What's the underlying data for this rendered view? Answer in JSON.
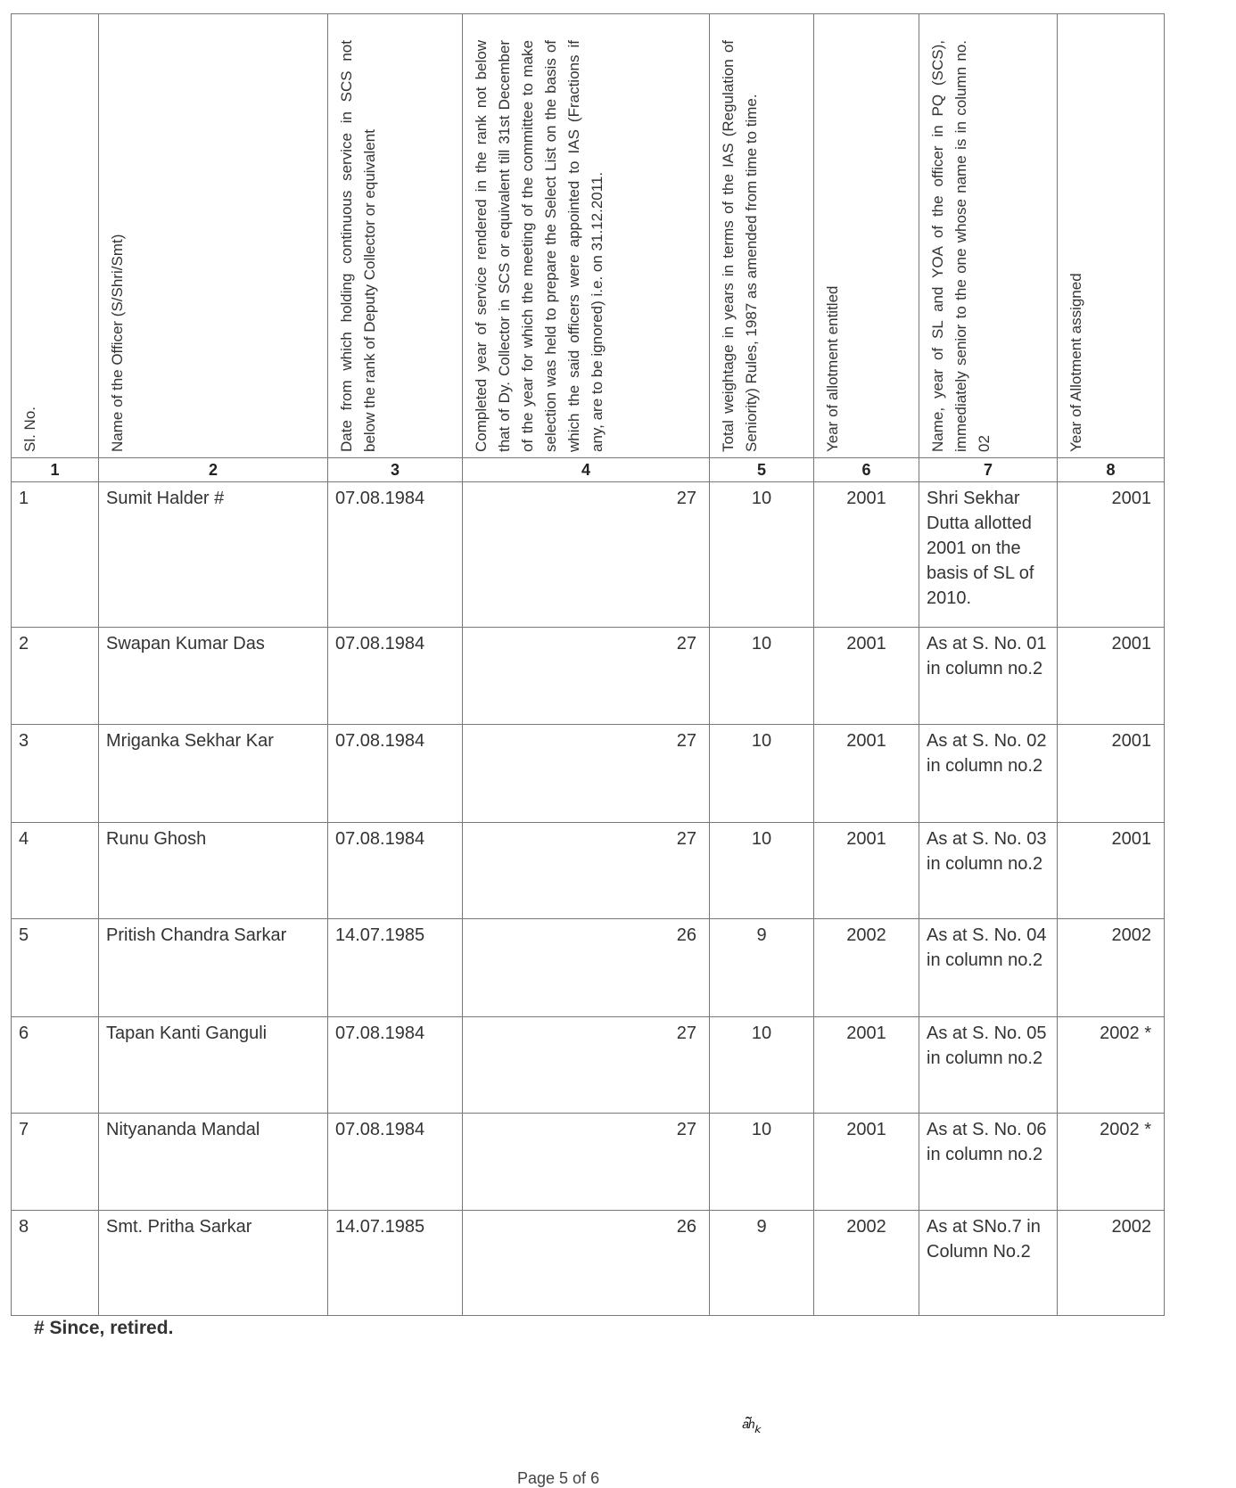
{
  "table": {
    "headers": [
      "Sl. No.",
      "Name of the Officer (S/Shri/Smt)",
      "Date from which holding continuous service in SCS not below the rank of Deputy Collector or equivalent",
      "Completed year of service rendered in the rank not below that of Dy. Collector in SCS or equivalent till 31st December of the year for which the meeting of the committee to make selection was held to prepare the Select List on the basis of which the said officers were appointed to IAS (Fractions if any, are to be ignored) i.e. on 31.12.2011.",
      "Total weightage in years in terms of the IAS (Regulation of Seniority) Rules, 1987 as amended from time to time.",
      "Year of allotment entitled",
      "Name, year of SL and YOA of the officer in PQ (SCS), immediately senior to the one whose name is in column no. 02",
      "Year of Allotment assigned"
    ],
    "column_numbers": [
      "1",
      "2",
      "3",
      "4",
      "5",
      "6",
      "7",
      "8"
    ],
    "rows": [
      [
        "1",
        "Sumit Halder  #",
        "07.08.1984",
        "27",
        "10",
        "2001",
        "Shri Sekhar Dutta allotted 2001 on the basis of SL of 2010.",
        "2001"
      ],
      [
        "2",
        "Swapan Kumar Das",
        "07.08.1984",
        "27",
        "10",
        "2001",
        "As at S. No. 01 in column no.2",
        "2001"
      ],
      [
        "3",
        "Mriganka Sekhar Kar",
        "07.08.1984",
        "27",
        "10",
        "2001",
        "As at S. No. 02 in column no.2",
        "2001"
      ],
      [
        "4",
        "Runu Ghosh",
        "07.08.1984",
        "27",
        "10",
        "2001",
        "As at S. No. 03 in column no.2",
        "2001"
      ],
      [
        "5",
        "Pritish Chandra Sarkar",
        "14.07.1985",
        "26",
        "9",
        "2002",
        "As at S. No. 04 in column no.2",
        "2002"
      ],
      [
        "6",
        "Tapan Kanti Ganguli",
        "07.08.1984",
        "27",
        "10",
        "2001",
        "As at S. No. 05 in column no.2",
        "2002 *"
      ],
      [
        "7",
        "Nityananda Mandal",
        "07.08.1984",
        "27",
        "10",
        "2001",
        "As at S. No. 06 in column no.2",
        "2002 *"
      ],
      [
        "8",
        "Smt. Pritha Sarkar",
        "14.07.1985",
        "26",
        "9",
        "2002",
        "As at SNo.7 in Column No.2",
        "2002"
      ]
    ]
  },
  "footnote": "# Since, retired.",
  "signature": "initials",
  "page_label": "Page 5 of 6"
}
